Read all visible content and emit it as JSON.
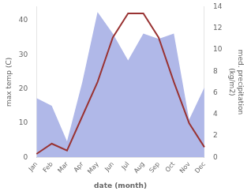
{
  "chart_data": {
    "type": "line",
    "categories": [
      "Jan",
      "Feb",
      "Mar",
      "Apr",
      "May",
      "Jun",
      "Jul",
      "Aug",
      "Sep",
      "Oct",
      "Nov",
      "Dec"
    ],
    "series": [
      {
        "type": "area",
        "color": "#b0b8e8",
        "axis": "y2",
        "values": [
          5.5,
          4.8,
          1.5,
          7.0,
          13.5,
          11.5,
          9.0,
          11.5,
          11.0,
          11.5,
          3.5,
          6.5
        ]
      },
      {
        "type": "line",
        "color": "#993333",
        "values": [
          1,
          4,
          2,
          12,
          22,
          35,
          42,
          42,
          35,
          22,
          10,
          3
        ]
      }
    ],
    "xlabel": "date (month)",
    "ylabel": "max temp (C)",
    "y2label": "med. precipitation\n(kg/m2)",
    "ylim": [
      0,
      44
    ],
    "yticks": [
      0,
      10,
      20,
      30,
      40
    ],
    "y2lim": [
      0,
      14
    ],
    "y2ticks": [
      0,
      2,
      4,
      6,
      8,
      10,
      12,
      14
    ],
    "grid": false
  }
}
